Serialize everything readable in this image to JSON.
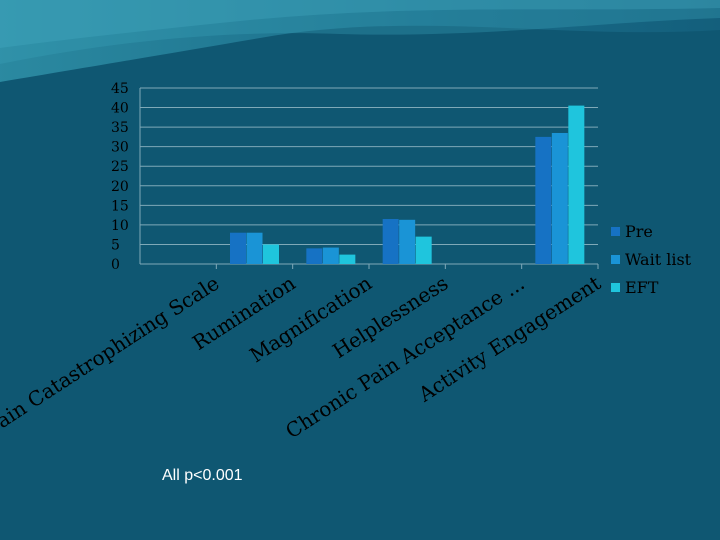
{
  "chart_data": {
    "type": "bar",
    "categories": [
      "Pain Catastrophizing Scale",
      "Rumination",
      "Magnification",
      "Helplessness",
      "Chronic Pain Acceptance ...",
      "Activity Engagement"
    ],
    "series": [
      {
        "name": "Pre",
        "values": [
          0,
          8,
          4,
          11.5,
          0,
          32.5
        ]
      },
      {
        "name": "Wait list",
        "values": [
          0,
          8,
          4.2,
          11.3,
          0,
          33.5
        ]
      },
      {
        "name": "EFT",
        "values": [
          0,
          5,
          2.4,
          7,
          0,
          40.5
        ]
      }
    ],
    "yticks": [
      0,
      5,
      10,
      15,
      20,
      25,
      30,
      35,
      40,
      45
    ],
    "ylim": [
      0,
      45
    ],
    "grid": true,
    "legend": "right"
  },
  "colors": {
    "background": "#0f5772",
    "Pre": "#1672c4",
    "Wait list": "#1a94d6",
    "EFT": "#1fc5dd",
    "text": "#000000",
    "grid": "#7fa9b8"
  },
  "note": "All p<0.001"
}
